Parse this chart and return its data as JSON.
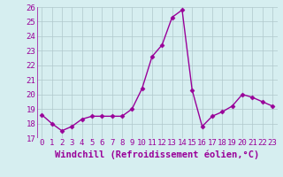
{
  "x": [
    0,
    1,
    2,
    3,
    4,
    5,
    6,
    7,
    8,
    9,
    10,
    11,
    12,
    13,
    14,
    15,
    16,
    17,
    18,
    19,
    20,
    21,
    22,
    23
  ],
  "y": [
    18.6,
    18.0,
    17.5,
    17.8,
    18.3,
    18.5,
    18.5,
    18.5,
    18.5,
    19.0,
    20.4,
    22.6,
    23.4,
    25.3,
    25.8,
    20.3,
    17.8,
    18.5,
    18.8,
    19.2,
    20.0,
    19.8,
    19.5,
    19.2
  ],
  "line_color": "#990099",
  "marker": "D",
  "marker_size": 2.5,
  "xlabel": "Windchill (Refroidissement éolien,°C)",
  "ylim": [
    17,
    26
  ],
  "yticks": [
    17,
    18,
    19,
    20,
    21,
    22,
    23,
    24,
    25,
    26
  ],
  "xticks": [
    0,
    1,
    2,
    3,
    4,
    5,
    6,
    7,
    8,
    9,
    10,
    11,
    12,
    13,
    14,
    15,
    16,
    17,
    18,
    19,
    20,
    21,
    22,
    23
  ],
  "bg_color": "#d6eef0",
  "grid_color": "#b0c8cc",
  "tick_label_fontsize": 6.5,
  "xlabel_fontsize": 7.5
}
